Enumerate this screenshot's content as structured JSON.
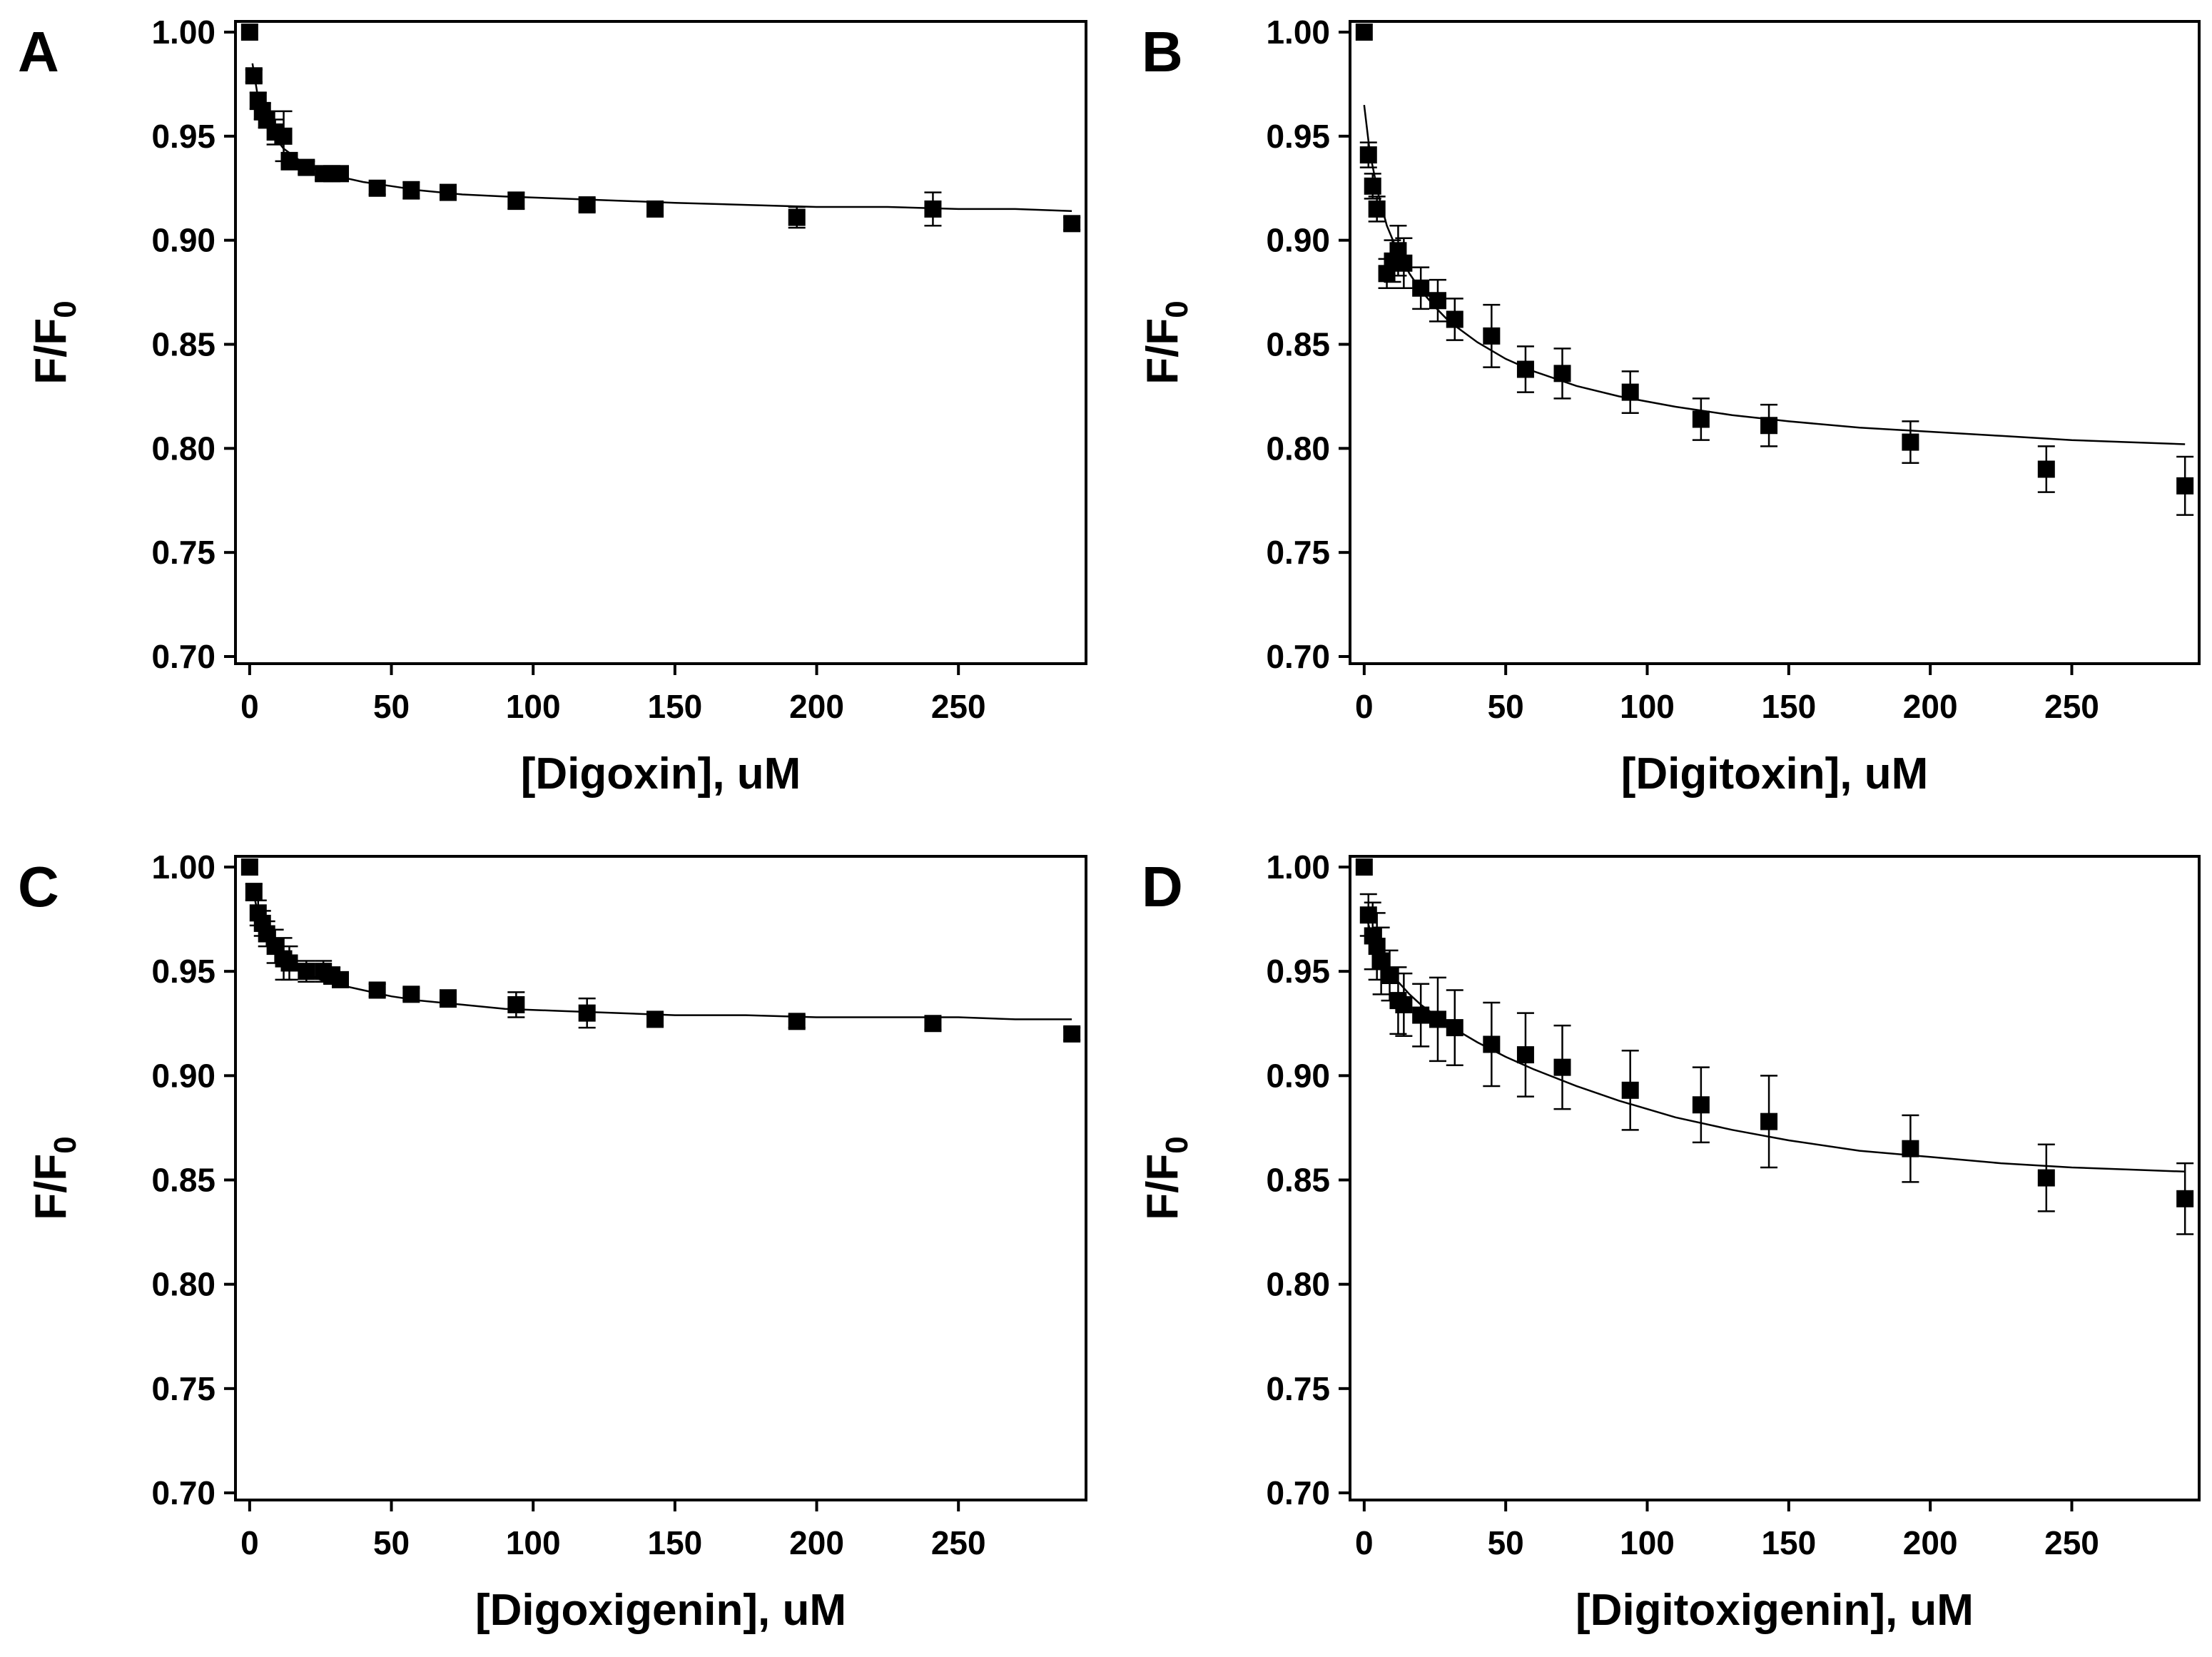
{
  "chart_data": [
    {
      "panel": "A",
      "type": "scatter",
      "xlabel": "[Digoxin], uM",
      "ylabel": "F/F",
      "ylabel_sub": "0",
      "xlim": [
        -5,
        295
      ],
      "ylim": [
        0.7,
        1.0
      ],
      "xticks": [
        0,
        50,
        100,
        150,
        200,
        250
      ],
      "yticks": [
        "0.70",
        "0.75",
        "0.80",
        "0.85",
        "0.90",
        "0.95",
        "1.00"
      ],
      "series": [
        {
          "x": [
            0,
            1.5,
            3,
            4.5,
            6,
            9,
            12,
            14,
            20,
            26,
            29,
            32,
            45,
            57,
            70,
            94,
            119,
            143,
            193,
            241,
            290
          ],
          "y": [
            1.0,
            0.979,
            0.967,
            0.962,
            0.958,
            0.952,
            0.95,
            0.938,
            0.935,
            0.932,
            0.932,
            0.932,
            0.925,
            0.924,
            0.923,
            0.919,
            0.917,
            0.915,
            0.911,
            0.915,
            0.908
          ],
          "err": [
            0,
            0.003,
            0.004,
            0.004,
            0.004,
            0.006,
            0.012,
            0.004,
            0.003,
            0.003,
            0.003,
            0.003,
            0.003,
            0.004,
            0.003,
            0.004,
            0.003,
            0.003,
            0.005,
            0.008,
            0.003
          ]
        }
      ],
      "fit": {
        "x": [
          1,
          3,
          5,
          8,
          12,
          16,
          20,
          25,
          30,
          40,
          50,
          60,
          75,
          90,
          110,
          130,
          150,
          175,
          200,
          225,
          250,
          270,
          290
        ],
        "y": [
          0.985,
          0.968,
          0.959,
          0.951,
          0.944,
          0.94,
          0.936,
          0.933,
          0.931,
          0.928,
          0.926,
          0.924,
          0.922,
          0.921,
          0.92,
          0.919,
          0.918,
          0.917,
          0.916,
          0.916,
          0.915,
          0.915,
          0.914
        ]
      }
    },
    {
      "panel": "B",
      "type": "scatter",
      "xlabel": "[Digitoxin], uM",
      "ylabel": "F/F",
      "ylabel_sub": "0",
      "xlim": [
        -5,
        295
      ],
      "ylim": [
        0.7,
        1.0
      ],
      "xticks": [
        0,
        50,
        100,
        150,
        200,
        250
      ],
      "yticks": [
        "0.70",
        "0.75",
        "0.80",
        "0.85",
        "0.90",
        "0.95",
        "1.00"
      ],
      "series": [
        {
          "x": [
            0,
            1.5,
            3,
            4.5,
            8,
            10,
            12,
            14,
            20,
            26,
            32,
            45,
            57,
            70,
            94,
            119,
            143,
            193,
            241,
            290
          ],
          "y": [
            1.0,
            0.941,
            0.926,
            0.915,
            0.884,
            0.89,
            0.895,
            0.889,
            0.877,
            0.871,
            0.862,
            0.854,
            0.838,
            0.836,
            0.827,
            0.814,
            0.811,
            0.803,
            0.79,
            0.782
          ],
          "err": [
            0,
            0.006,
            0.006,
            0.006,
            0.007,
            0.01,
            0.012,
            0.012,
            0.01,
            0.01,
            0.01,
            0.015,
            0.011,
            0.012,
            0.01,
            0.01,
            0.01,
            0.01,
            0.011,
            0.014
          ]
        }
      ],
      "fit": {
        "x": [
          0,
          2,
          5,
          8,
          12,
          16,
          20,
          25,
          30,
          40,
          50,
          60,
          75,
          90,
          110,
          130,
          150,
          175,
          200,
          225,
          250,
          270,
          290
        ],
        "y": [
          0.965,
          0.942,
          0.922,
          0.907,
          0.894,
          0.884,
          0.876,
          0.868,
          0.861,
          0.851,
          0.843,
          0.837,
          0.83,
          0.825,
          0.82,
          0.816,
          0.813,
          0.81,
          0.808,
          0.806,
          0.804,
          0.803,
          0.802
        ]
      }
    },
    {
      "panel": "C",
      "type": "scatter",
      "xlabel": "[Digoxigenin], uM",
      "ylabel": "F/F",
      "ylabel_sub": "0",
      "xlim": [
        -5,
        295
      ],
      "ylim": [
        0.7,
        1.0
      ],
      "xticks": [
        0,
        50,
        100,
        150,
        200,
        250
      ],
      "yticks": [
        "0.70",
        "0.75",
        "0.80",
        "0.85",
        "0.90",
        "0.95",
        "1.00"
      ],
      "series": [
        {
          "x": [
            0,
            1.5,
            3,
            4.5,
            6,
            9,
            12,
            14,
            20,
            26,
            29,
            32,
            45,
            57,
            70,
            94,
            119,
            143,
            193,
            241,
            290
          ],
          "y": [
            1.0,
            0.988,
            0.978,
            0.973,
            0.968,
            0.962,
            0.956,
            0.954,
            0.95,
            0.95,
            0.948,
            0.946,
            0.941,
            0.939,
            0.937,
            0.934,
            0.93,
            0.927,
            0.926,
            0.925,
            0.92
          ],
          "err": [
            0,
            0.004,
            0.006,
            0.006,
            0.006,
            0.008,
            0.01,
            0.008,
            0.005,
            0.005,
            0.004,
            0.003,
            0.003,
            0.003,
            0.004,
            0.006,
            0.007,
            0.003,
            0.003,
            0.003,
            0.003
          ]
        }
      ],
      "fit": {
        "x": [
          1,
          3,
          5,
          8,
          12,
          16,
          20,
          25,
          30,
          40,
          50,
          60,
          75,
          90,
          110,
          130,
          150,
          175,
          200,
          225,
          250,
          270,
          290
        ],
        "y": [
          0.99,
          0.977,
          0.969,
          0.962,
          0.956,
          0.952,
          0.949,
          0.946,
          0.944,
          0.941,
          0.938,
          0.936,
          0.934,
          0.932,
          0.931,
          0.93,
          0.929,
          0.929,
          0.928,
          0.928,
          0.928,
          0.927,
          0.927
        ]
      }
    },
    {
      "panel": "D",
      "type": "scatter",
      "xlabel": "[Digitoxigenin], uM",
      "ylabel": "F/F",
      "ylabel_sub": "0",
      "xlim": [
        -5,
        295
      ],
      "ylim": [
        0.7,
        1.0
      ],
      "xticks": [
        0,
        50,
        100,
        150,
        200,
        250
      ],
      "yticks": [
        "0.70",
        "0.75",
        "0.80",
        "0.85",
        "0.90",
        "0.95",
        "1.00"
      ],
      "series": [
        {
          "x": [
            0,
            1.5,
            3,
            4.5,
            6,
            9,
            12,
            14,
            20,
            26,
            32,
            45,
            57,
            70,
            94,
            119,
            143,
            193,
            241,
            290
          ],
          "y": [
            1.0,
            0.977,
            0.967,
            0.962,
            0.955,
            0.948,
            0.936,
            0.934,
            0.929,
            0.927,
            0.923,
            0.915,
            0.91,
            0.904,
            0.893,
            0.886,
            0.878,
            0.865,
            0.851,
            0.841
          ],
          "err": [
            0,
            0.01,
            0.016,
            0.016,
            0.016,
            0.012,
            0.016,
            0.015,
            0.015,
            0.02,
            0.018,
            0.02,
            0.02,
            0.02,
            0.019,
            0.018,
            0.022,
            0.016,
            0.016,
            0.017
          ]
        }
      ],
      "fit": {
        "x": [
          0,
          2,
          5,
          8,
          12,
          16,
          20,
          25,
          30,
          40,
          50,
          60,
          75,
          90,
          110,
          130,
          150,
          175,
          200,
          225,
          250,
          270,
          290
        ],
        "y": [
          0.98,
          0.97,
          0.96,
          0.953,
          0.945,
          0.939,
          0.934,
          0.929,
          0.924,
          0.916,
          0.909,
          0.903,
          0.895,
          0.888,
          0.88,
          0.874,
          0.869,
          0.864,
          0.861,
          0.858,
          0.856,
          0.855,
          0.854
        ]
      }
    }
  ]
}
